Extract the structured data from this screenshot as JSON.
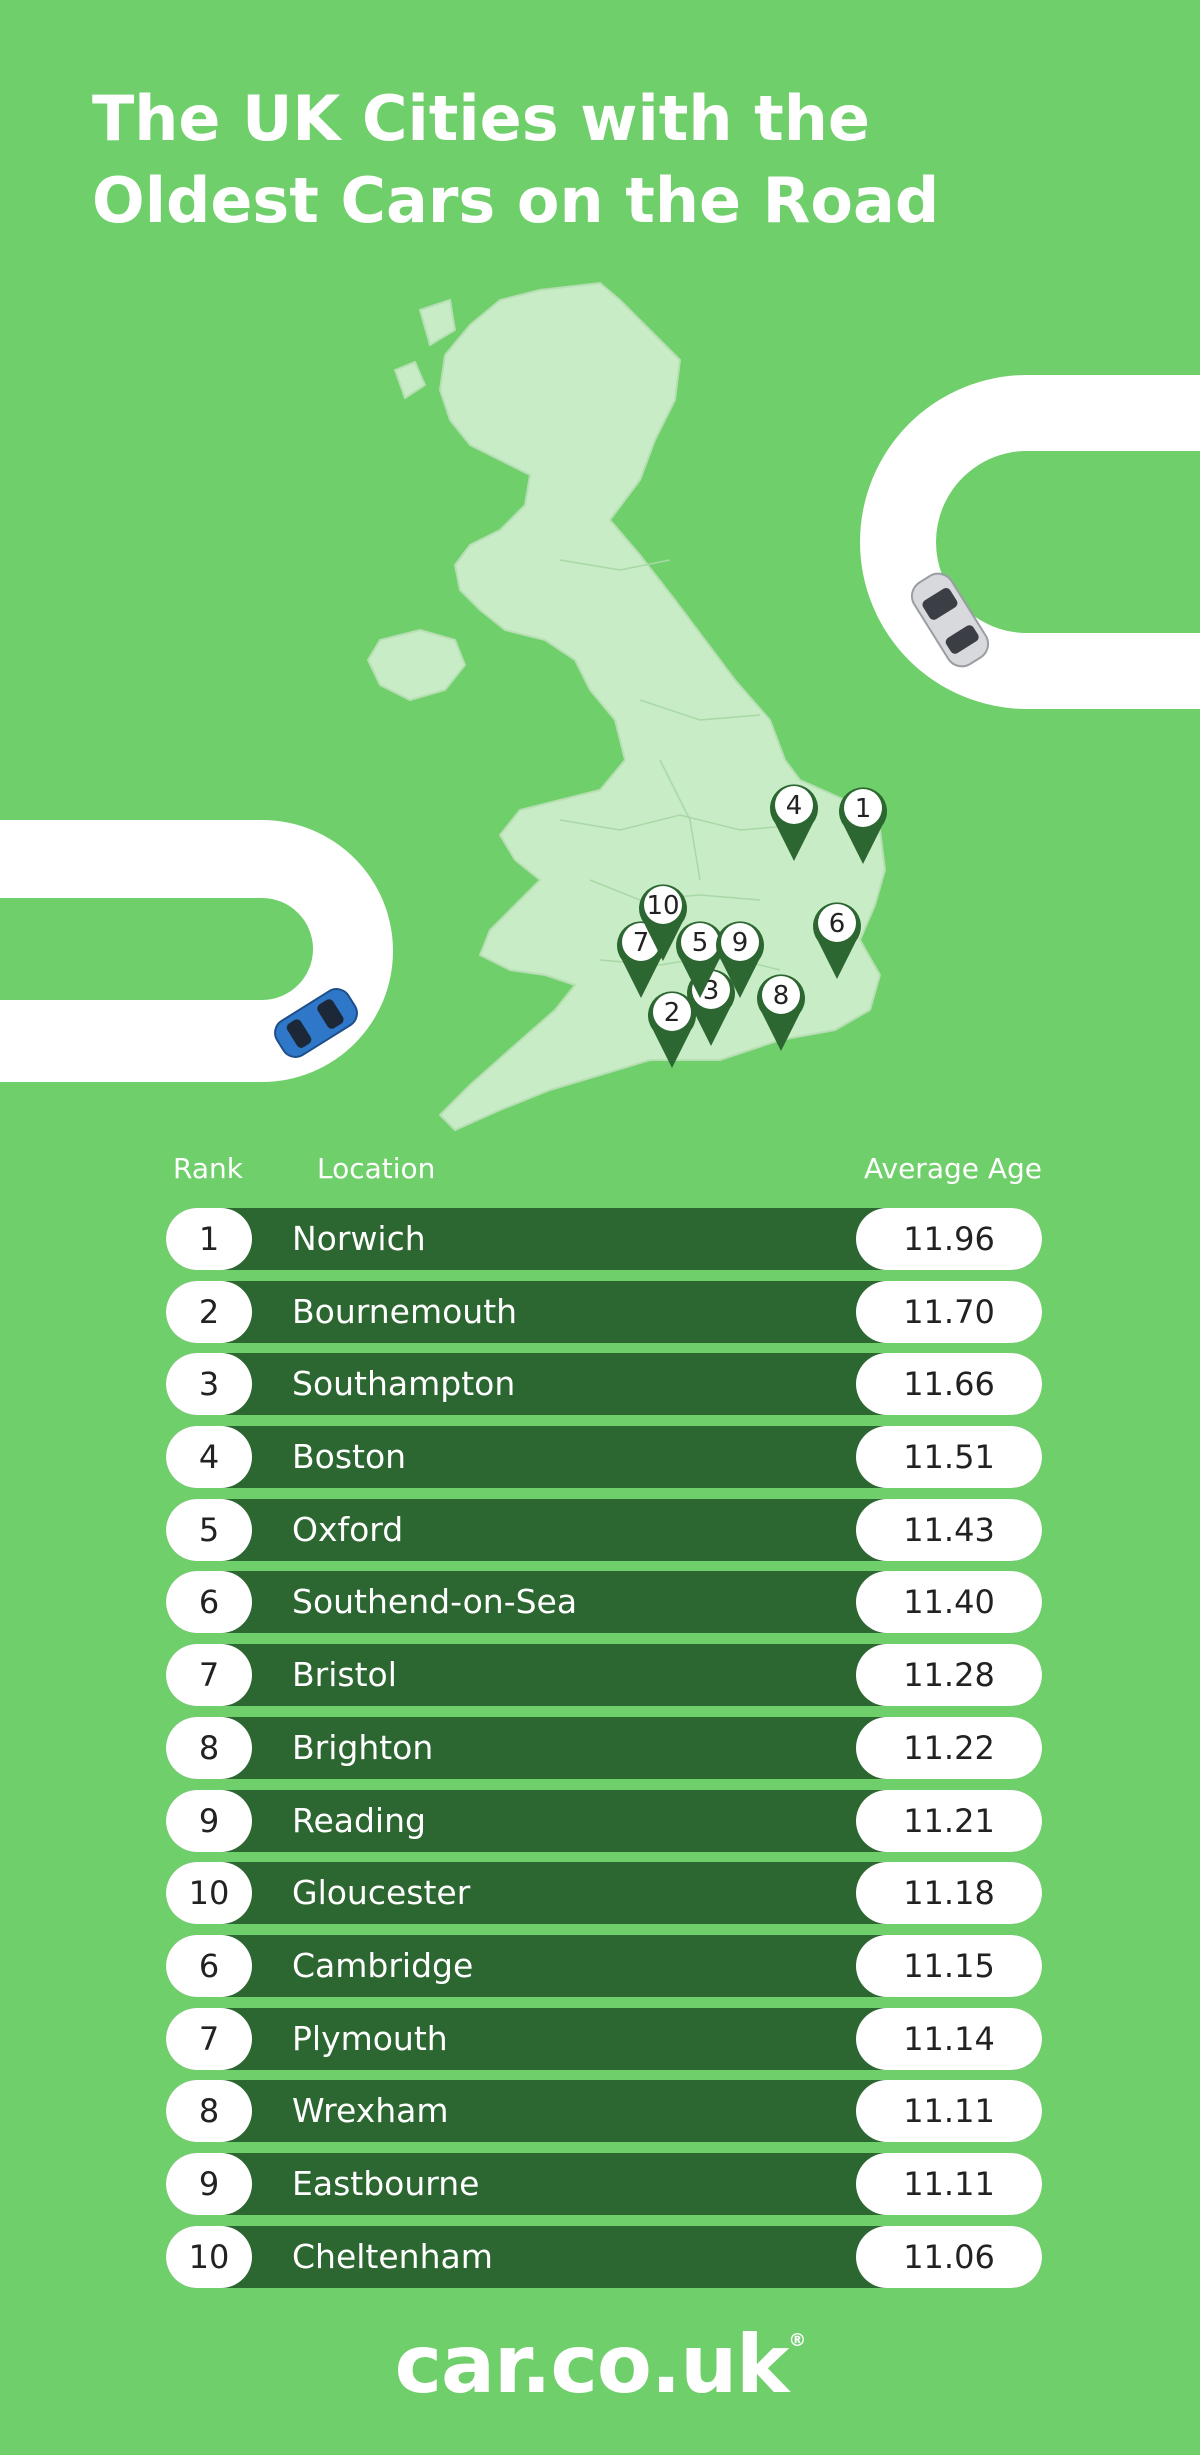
{
  "title": {
    "line1": "The UK Cities with the",
    "line2": "Oldest Cars on the Road"
  },
  "map": {
    "pins": [
      "1",
      "2",
      "3",
      "4",
      "5",
      "6",
      "7",
      "8",
      "9",
      "10"
    ],
    "colors": {
      "land": "#c8ecc6",
      "pin": "#2c6630",
      "background": "#6fcf6a"
    }
  },
  "table": {
    "headers": {
      "rank": "Rank",
      "location": "Location",
      "age": "Average Age"
    },
    "rows": [
      {
        "rank": "1",
        "location": "Norwich",
        "age": "11.96"
      },
      {
        "rank": "2",
        "location": "Bournemouth",
        "age": "11.70"
      },
      {
        "rank": "3",
        "location": "Southampton",
        "age": "11.66"
      },
      {
        "rank": "4",
        "location": "Boston",
        "age": "11.51"
      },
      {
        "rank": "5",
        "location": "Oxford",
        "age": "11.43"
      },
      {
        "rank": "6",
        "location": "Southend-on-Sea",
        "age": "11.40"
      },
      {
        "rank": "7",
        "location": "Bristol",
        "age": "11.28"
      },
      {
        "rank": "8",
        "location": "Brighton",
        "age": "11.22"
      },
      {
        "rank": "9",
        "location": "Reading",
        "age": "11.21"
      },
      {
        "rank": "10",
        "location": "Gloucester",
        "age": "11.18"
      },
      {
        "rank": "6",
        "location": "Cambridge",
        "age": "11.15"
      },
      {
        "rank": "7",
        "location": "Plymouth",
        "age": "11.14"
      },
      {
        "rank": "8",
        "location": "Wrexham",
        "age": "11.11"
      },
      {
        "rank": "9",
        "location": "Eastbourne",
        "age": "11.11"
      },
      {
        "rank": "10",
        "location": "Cheltenham",
        "age": "11.06"
      }
    ]
  },
  "logo": {
    "text": "car.co.uk",
    "mark": "®"
  }
}
